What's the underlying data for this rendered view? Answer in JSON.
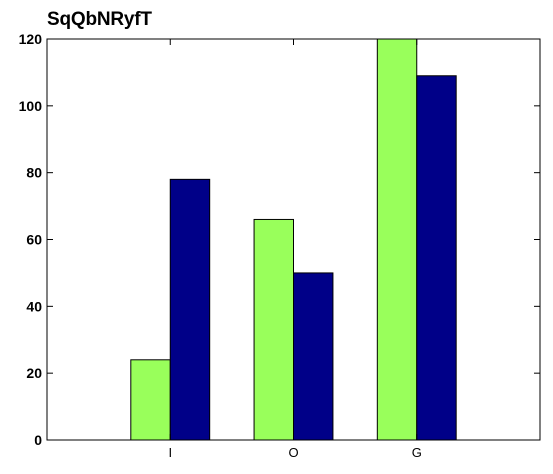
{
  "chart_data": {
    "type": "bar",
    "title": "SqQbNRyfT",
    "xlabel": "",
    "ylabel": "",
    "categories": [
      "I",
      "O",
      "G"
    ],
    "series": [
      {
        "values": [
          24,
          66,
          120
        ],
        "color": "#99ff5b"
      },
      {
        "values": [
          78,
          50,
          109
        ],
        "color": "#000088"
      }
    ],
    "ylim": [
      0,
      120
    ],
    "yticks": [
      0,
      20,
      40,
      60,
      80,
      100,
      120
    ],
    "grid": false,
    "legend": "none"
  }
}
